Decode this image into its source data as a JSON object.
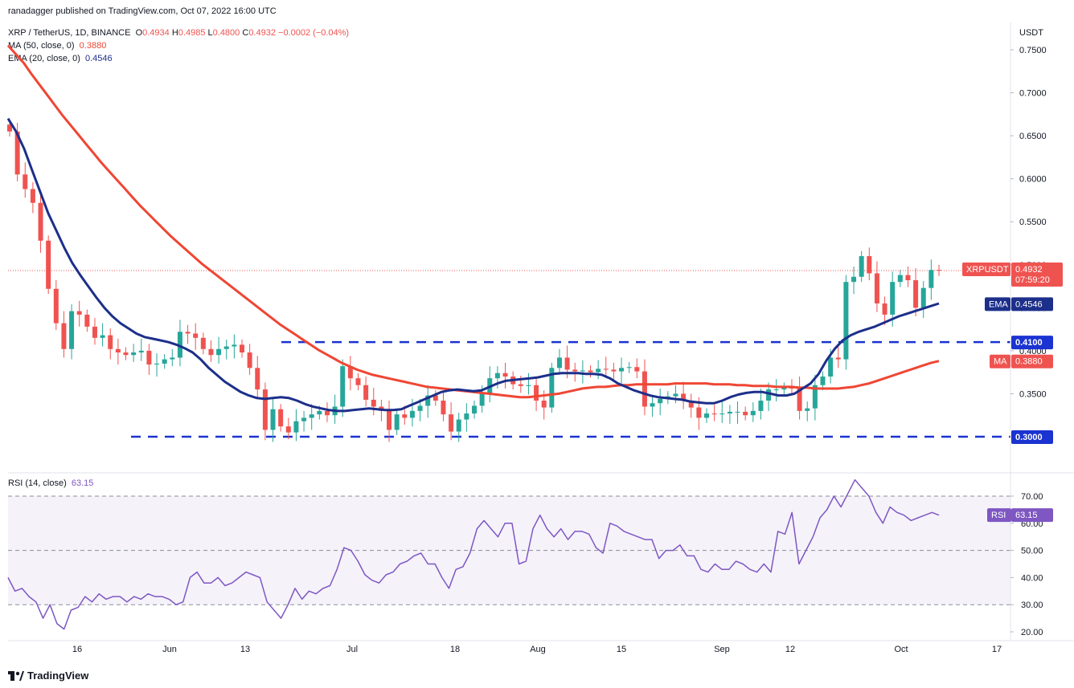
{
  "publisher": "ranadagger published on TradingView.com, Oct 07, 2022 16:00 UTC",
  "brand": "TradingView",
  "header": {
    "symbol": "XRP / TetherUS, 1D, BINANCE",
    "o_label": "O",
    "o": "0.4934",
    "h_label": "H",
    "h": "0.4985",
    "l_label": "L",
    "l": "0.4800",
    "c_label": "C",
    "c": "0.4932",
    "change": "−0.0002 (−0.04%)",
    "ma_label": "MA (50, close, 0)",
    "ma_value": "0.3880",
    "ema_label": "EMA (20, close, 0)",
    "ema_value": "0.4546",
    "rsi_label": "RSI (14, close)",
    "rsi_value": "63.15"
  },
  "colors": {
    "up": "#26a69a",
    "down": "#ef5350",
    "ma": "#ef4634",
    "ema": "#1c2f8a",
    "rsi": "#7e57c2",
    "level": "#1a33d1"
  },
  "chart_data": [
    {
      "type": "candlestick",
      "title": "XRP / TetherUS, 1D, BINANCE",
      "ylabel": "USDT",
      "ylim": [
        0.27,
        0.76
      ],
      "y_ticks": [
        "0.7500",
        "0.7000",
        "0.6500",
        "0.6000",
        "0.5500",
        "0.5000",
        "0.4500",
        "0.4000",
        "0.3500",
        "0.3000"
      ],
      "x_ticks": [
        "16",
        "Jun",
        "13",
        "Jul",
        "18",
        "Aug",
        "15",
        "Sep",
        "12",
        "Oct",
        "17"
      ],
      "horizontal_levels": [
        {
          "value": 0.41,
          "label": "0.4100"
        },
        {
          "value": 0.3,
          "label": "0.3000"
        }
      ],
      "last_price": {
        "label": "XRPUSDT",
        "value": "0.4932",
        "countdown": "07:59:20"
      },
      "series": [
        {
          "name": "MA",
          "value_label": "0.3880",
          "values": [
            0.755,
            0.745,
            0.735,
            0.722,
            0.71,
            0.698,
            0.686,
            0.674,
            0.663,
            0.652,
            0.641,
            0.63,
            0.619,
            0.609,
            0.599,
            0.589,
            0.579,
            0.569,
            0.56,
            0.551,
            0.542,
            0.533,
            0.525,
            0.517,
            0.509,
            0.501,
            0.494,
            0.487,
            0.48,
            0.473,
            0.466,
            0.459,
            0.452,
            0.445,
            0.438,
            0.431,
            0.425,
            0.419,
            0.413,
            0.407,
            0.401,
            0.396,
            0.391,
            0.386,
            0.382,
            0.378,
            0.375,
            0.372,
            0.37,
            0.368,
            0.366,
            0.364,
            0.362,
            0.36,
            0.358,
            0.357,
            0.356,
            0.355,
            0.354,
            0.353,
            0.352,
            0.351,
            0.35,
            0.349,
            0.348,
            0.347,
            0.346,
            0.346,
            0.347,
            0.348,
            0.349,
            0.35,
            0.352,
            0.354,
            0.356,
            0.357,
            0.358,
            0.358,
            0.359,
            0.36,
            0.36,
            0.361,
            0.361,
            0.361,
            0.361,
            0.361,
            0.362,
            0.362,
            0.362,
            0.362,
            0.362,
            0.361,
            0.361,
            0.361,
            0.36,
            0.36,
            0.359,
            0.359,
            0.359,
            0.358,
            0.358,
            0.358,
            0.357,
            0.357,
            0.356,
            0.356,
            0.356,
            0.356,
            0.357,
            0.358,
            0.36,
            0.362,
            0.365,
            0.368,
            0.371,
            0.374,
            0.377,
            0.38,
            0.383,
            0.386,
            0.388
          ]
        },
        {
          "name": "EMA",
          "value_label": "0.4546",
          "values": [
            0.67,
            0.655,
            0.635,
            0.61,
            0.585,
            0.56,
            0.54,
            0.52,
            0.502,
            0.488,
            0.475,
            0.462,
            0.45,
            0.44,
            0.432,
            0.426,
            0.42,
            0.416,
            0.414,
            0.412,
            0.41,
            0.407,
            0.403,
            0.398,
            0.39,
            0.38,
            0.372,
            0.364,
            0.358,
            0.352,
            0.348,
            0.345,
            0.344,
            0.345,
            0.346,
            0.345,
            0.342,
            0.338,
            0.335,
            0.333,
            0.331,
            0.33,
            0.33,
            0.331,
            0.332,
            0.333,
            0.332,
            0.331,
            0.331,
            0.332,
            0.336,
            0.34,
            0.344,
            0.348,
            0.352,
            0.354,
            0.355,
            0.354,
            0.353,
            0.354,
            0.358,
            0.362,
            0.365,
            0.366,
            0.367,
            0.368,
            0.369,
            0.371,
            0.373,
            0.374,
            0.374,
            0.374,
            0.373,
            0.373,
            0.372,
            0.368,
            0.362,
            0.358,
            0.354,
            0.351,
            0.348,
            0.346,
            0.345,
            0.344,
            0.343,
            0.341,
            0.34,
            0.339,
            0.339,
            0.342,
            0.346,
            0.349,
            0.351,
            0.352,
            0.352,
            0.35,
            0.348,
            0.348,
            0.35,
            0.356,
            0.362,
            0.373,
            0.389,
            0.402,
            0.412,
            0.418,
            0.422,
            0.425,
            0.428,
            0.432,
            0.436,
            0.44,
            0.443,
            0.446,
            0.449,
            0.452,
            0.455
          ]
        },
        {
          "name": "Close",
          "values": [
            0.655,
            0.605,
            0.588,
            0.572,
            0.528,
            0.472,
            0.432,
            0.402,
            0.446,
            0.442,
            0.428,
            0.415,
            0.418,
            0.402,
            0.398,
            0.395,
            0.398,
            0.4,
            0.384,
            0.385,
            0.39,
            0.392,
            0.422,
            0.42,
            0.415,
            0.402,
            0.395,
            0.402,
            0.405,
            0.407,
            0.398,
            0.38,
            0.355,
            0.308,
            0.332,
            0.312,
            0.305,
            0.318,
            0.322,
            0.326,
            0.33,
            0.325,
            0.335,
            0.382,
            0.368,
            0.36,
            0.343,
            0.335,
            0.33,
            0.308,
            0.326,
            0.322,
            0.33,
            0.336,
            0.348,
            0.342,
            0.326,
            0.306,
            0.32,
            0.327,
            0.336,
            0.35,
            0.368,
            0.374,
            0.37,
            0.361,
            0.359,
            0.36,
            0.342,
            0.334,
            0.38,
            0.392,
            0.378,
            0.376,
            0.377,
            0.375,
            0.379,
            0.378,
            0.376,
            0.38,
            0.381,
            0.376,
            0.335,
            0.339,
            0.344,
            0.347,
            0.35,
            0.342,
            0.334,
            0.322,
            0.327,
            0.326,
            0.327,
            0.329,
            0.329,
            0.325,
            0.33,
            0.342,
            0.355,
            0.355,
            0.357,
            0.356,
            0.33,
            0.333,
            0.36,
            0.37,
            0.392,
            0.39,
            0.48,
            0.486,
            0.51,
            0.49,
            0.455,
            0.442,
            0.48,
            0.488,
            0.482,
            0.45,
            0.473,
            0.494,
            0.493
          ]
        }
      ]
    },
    {
      "type": "line",
      "title": "RSI (14, close)",
      "ylim": [
        17,
        78
      ],
      "y_ticks": [
        "70.00",
        "60.00",
        "50.00",
        "40.00",
        "30.00",
        "20.00"
      ],
      "bands": [
        30,
        50,
        70
      ],
      "series": [
        {
          "name": "RSI",
          "value_label": "63.15",
          "values": [
            40,
            35,
            36,
            33,
            31,
            25,
            30,
            23,
            21,
            28,
            29,
            33,
            31,
            34,
            32,
            33,
            33,
            31,
            33,
            32,
            34,
            33,
            33,
            32,
            30,
            31,
            40,
            42,
            38,
            38,
            40,
            37,
            38,
            40,
            42,
            41,
            40,
            31,
            28,
            25,
            30,
            36,
            32,
            35,
            34,
            36,
            37,
            43,
            51,
            50,
            46,
            41,
            39,
            38,
            41,
            42,
            45,
            46,
            48,
            49,
            45,
            45,
            40,
            36,
            43,
            44,
            49,
            58,
            61,
            58,
            55,
            60,
            60,
            45,
            46,
            58,
            63,
            58,
            55,
            58,
            54,
            57,
            57,
            56,
            51,
            49,
            60,
            59,
            57,
            56,
            55,
            54,
            54,
            47,
            50,
            50,
            52,
            48,
            48,
            43,
            42,
            45,
            43,
            43,
            46,
            45,
            43,
            42,
            45,
            42,
            57,
            56,
            64,
            45,
            50,
            55,
            62,
            65,
            70,
            66,
            71,
            76,
            73,
            70,
            64,
            60,
            66,
            64,
            63,
            61,
            62,
            63,
            64,
            63
          ]
        }
      ]
    }
  ]
}
